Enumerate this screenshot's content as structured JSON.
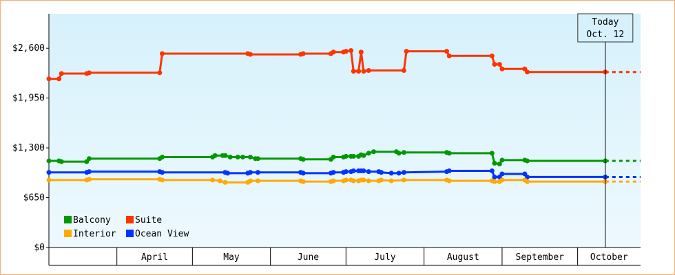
{
  "chart_data": {
    "type": "line",
    "title": "",
    "xlabel": "",
    "ylabel": "",
    "y_ticks": [
      "$0",
      "$650",
      "$1,300",
      "$1,950",
      "$2,600"
    ],
    "y_tick_values": [
      0,
      650,
      1300,
      1950,
      2600
    ],
    "ylim": [
      0,
      3050
    ],
    "months": [
      "April",
      "May",
      "June",
      "July",
      "August",
      "September",
      "October"
    ],
    "month_starts": [
      "2013-04-01",
      "2013-05-01",
      "2013-06-01",
      "2013-07-01",
      "2013-08-01",
      "2013-09-01",
      "2013-10-01",
      "2013-11-01"
    ],
    "xlim": [
      "2013-03-05",
      "2013-10-26"
    ],
    "today_label": "Today",
    "today_date_label": "Oct. 12",
    "today": "2013-10-12",
    "legend_position": "bottom-left",
    "gradient_colors": [
      "#d6f1fc",
      "#eef9fe"
    ],
    "series": [
      {
        "name": "Suite",
        "color": "#ff3300",
        "points": [
          [
            "2013-03-05",
            2200
          ],
          [
            "2013-03-09",
            2200
          ],
          [
            "2013-03-10",
            2270
          ],
          [
            "2013-03-20",
            2270
          ],
          [
            "2013-03-21",
            2280
          ],
          [
            "2013-04-18",
            2280
          ],
          [
            "2013-04-19",
            2530
          ],
          [
            "2013-05-23",
            2530
          ],
          [
            "2013-05-24",
            2520
          ],
          [
            "2013-06-13",
            2520
          ],
          [
            "2013-06-14",
            2530
          ],
          [
            "2013-06-25",
            2530
          ],
          [
            "2013-06-26",
            2550
          ],
          [
            "2013-06-30",
            2550
          ],
          [
            "2013-07-01",
            2560
          ],
          [
            "2013-07-03",
            2570
          ],
          [
            "2013-07-04",
            2300
          ],
          [
            "2013-07-06",
            2300
          ],
          [
            "2013-07-07",
            2550
          ],
          [
            "2013-07-08",
            2300
          ],
          [
            "2013-07-10",
            2310
          ],
          [
            "2013-07-24",
            2310
          ],
          [
            "2013-07-25",
            2560
          ],
          [
            "2013-08-10",
            2560
          ],
          [
            "2013-08-11",
            2500
          ],
          [
            "2013-08-28",
            2500
          ],
          [
            "2013-08-29",
            2390
          ],
          [
            "2013-08-31",
            2390
          ],
          [
            "2013-09-01",
            2330
          ],
          [
            "2013-09-10",
            2330
          ],
          [
            "2013-09-11",
            2290
          ],
          [
            "2013-10-12",
            2290
          ]
        ]
      },
      {
        "name": "Balcony",
        "color": "#009900",
        "points": [
          [
            "2013-03-05",
            1130
          ],
          [
            "2013-03-09",
            1130
          ],
          [
            "2013-03-10",
            1120
          ],
          [
            "2013-03-20",
            1120
          ],
          [
            "2013-03-21",
            1160
          ],
          [
            "2013-04-18",
            1160
          ],
          [
            "2013-04-19",
            1180
          ],
          [
            "2013-05-09",
            1180
          ],
          [
            "2013-05-10",
            1200
          ],
          [
            "2013-05-13",
            1200
          ],
          [
            "2013-05-14",
            1200
          ],
          [
            "2013-05-16",
            1180
          ],
          [
            "2013-05-19",
            1180
          ],
          [
            "2013-05-21",
            1180
          ],
          [
            "2013-05-24",
            1180
          ],
          [
            "2013-05-26",
            1160
          ],
          [
            "2013-05-27",
            1160
          ],
          [
            "2013-06-13",
            1160
          ],
          [
            "2013-06-14",
            1150
          ],
          [
            "2013-06-25",
            1150
          ],
          [
            "2013-06-26",
            1180
          ],
          [
            "2013-06-30",
            1180
          ],
          [
            "2013-07-01",
            1190
          ],
          [
            "2013-07-03",
            1190
          ],
          [
            "2013-07-04",
            1190
          ],
          [
            "2013-07-06",
            1190
          ],
          [
            "2013-07-07",
            1210
          ],
          [
            "2013-07-08",
            1200
          ],
          [
            "2013-07-10",
            1230
          ],
          [
            "2013-07-12",
            1250
          ],
          [
            "2013-07-21",
            1250
          ],
          [
            "2013-07-22",
            1230
          ],
          [
            "2013-07-24",
            1240
          ],
          [
            "2013-08-10",
            1240
          ],
          [
            "2013-08-11",
            1230
          ],
          [
            "2013-08-28",
            1230
          ],
          [
            "2013-08-29",
            1100
          ],
          [
            "2013-08-31",
            1090
          ],
          [
            "2013-09-01",
            1140
          ],
          [
            "2013-09-10",
            1140
          ],
          [
            "2013-09-11",
            1130
          ],
          [
            "2013-10-12",
            1130
          ]
        ]
      },
      {
        "name": "Ocean View",
        "color": "#0033ff",
        "points": [
          [
            "2013-03-05",
            980
          ],
          [
            "2013-03-20",
            980
          ],
          [
            "2013-03-21",
            990
          ],
          [
            "2013-04-18",
            990
          ],
          [
            "2013-04-19",
            980
          ],
          [
            "2013-05-14",
            980
          ],
          [
            "2013-05-15",
            970
          ],
          [
            "2013-05-23",
            970
          ],
          [
            "2013-05-24",
            980
          ],
          [
            "2013-05-27",
            980
          ],
          [
            "2013-06-13",
            980
          ],
          [
            "2013-06-14",
            970
          ],
          [
            "2013-06-25",
            970
          ],
          [
            "2013-06-26",
            980
          ],
          [
            "2013-06-30",
            980
          ],
          [
            "2013-07-01",
            990
          ],
          [
            "2013-07-03",
            990
          ],
          [
            "2013-07-04",
            1000
          ],
          [
            "2013-07-06",
            1000
          ],
          [
            "2013-07-07",
            1000
          ],
          [
            "2013-07-08",
            1000
          ],
          [
            "2013-07-10",
            990
          ],
          [
            "2013-07-14",
            990
          ],
          [
            "2013-07-15",
            980
          ],
          [
            "2013-07-19",
            970
          ],
          [
            "2013-07-22",
            970
          ],
          [
            "2013-07-24",
            980
          ],
          [
            "2013-08-10",
            990
          ],
          [
            "2013-08-11",
            1000
          ],
          [
            "2013-08-28",
            1000
          ],
          [
            "2013-08-29",
            920
          ],
          [
            "2013-08-31",
            920
          ],
          [
            "2013-09-01",
            960
          ],
          [
            "2013-09-10",
            960
          ],
          [
            "2013-09-11",
            920
          ],
          [
            "2013-10-12",
            920
          ]
        ]
      },
      {
        "name": "Interior",
        "color": "#ffaa00",
        "points": [
          [
            "2013-03-05",
            880
          ],
          [
            "2013-03-20",
            880
          ],
          [
            "2013-03-21",
            890
          ],
          [
            "2013-04-18",
            890
          ],
          [
            "2013-04-19",
            880
          ],
          [
            "2013-05-09",
            880
          ],
          [
            "2013-05-12",
            870
          ],
          [
            "2013-05-14",
            850
          ],
          [
            "2013-05-23",
            850
          ],
          [
            "2013-05-24",
            870
          ],
          [
            "2013-05-27",
            870
          ],
          [
            "2013-06-13",
            870
          ],
          [
            "2013-06-14",
            860
          ],
          [
            "2013-06-25",
            860
          ],
          [
            "2013-06-26",
            870
          ],
          [
            "2013-06-30",
            870
          ],
          [
            "2013-07-01",
            880
          ],
          [
            "2013-07-03",
            880
          ],
          [
            "2013-07-04",
            870
          ],
          [
            "2013-07-06",
            870
          ],
          [
            "2013-07-07",
            880
          ],
          [
            "2013-07-08",
            880
          ],
          [
            "2013-07-10",
            870
          ],
          [
            "2013-07-14",
            870
          ],
          [
            "2013-07-15",
            880
          ],
          [
            "2013-07-19",
            870
          ],
          [
            "2013-07-24",
            880
          ],
          [
            "2013-08-10",
            880
          ],
          [
            "2013-08-11",
            870
          ],
          [
            "2013-08-28",
            870
          ],
          [
            "2013-08-29",
            860
          ],
          [
            "2013-08-31",
            860
          ],
          [
            "2013-09-01",
            880
          ],
          [
            "2013-09-10",
            880
          ],
          [
            "2013-09-11",
            860
          ],
          [
            "2013-10-12",
            860
          ]
        ]
      }
    ],
    "legend": [
      [
        "Balcony",
        "Suite"
      ],
      [
        "Interior",
        "Ocean View"
      ]
    ]
  }
}
